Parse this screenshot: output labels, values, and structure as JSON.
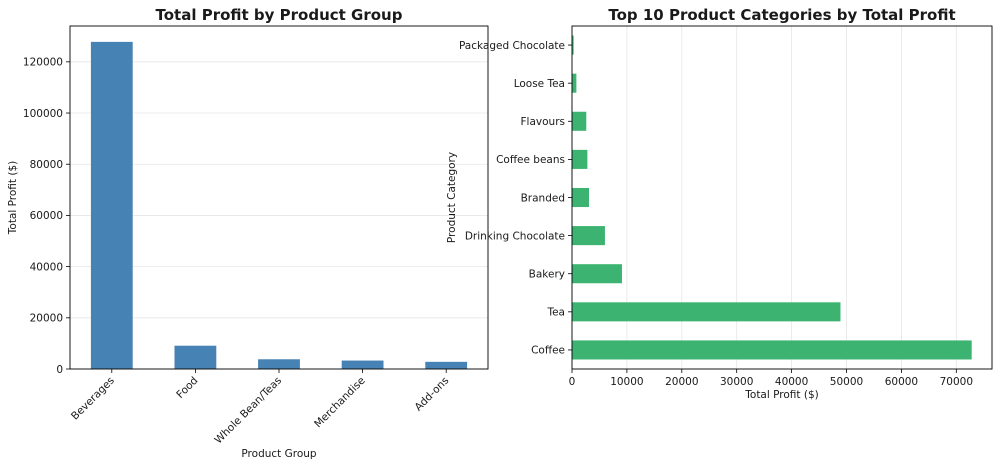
{
  "chart_data": [
    {
      "type": "bar",
      "title": "Total Profit by Product Group",
      "xlabel": "Product Group",
      "ylabel": "Total Profit ($)",
      "categories": [
        "Beverages",
        "Food",
        "Whole Bean/Teas",
        "Merchandise",
        "Add-ons"
      ],
      "values": [
        127800,
        9100,
        3800,
        3300,
        2800
      ],
      "ylim": [
        0,
        134000
      ],
      "yticks": [
        0,
        20000,
        40000,
        60000,
        80000,
        100000,
        120000
      ],
      "ytick_labels": [
        "0",
        "20000",
        "40000",
        "60000",
        "80000",
        "100000",
        "120000"
      ],
      "grid": "y",
      "color": "#4682b4"
    },
    {
      "type": "bar",
      "orientation": "horizontal",
      "title": "Top 10 Product Categories by Total Profit",
      "xlabel": "Total Profit ($)",
      "ylabel": "Product Category",
      "categories": [
        "Coffee",
        "Tea",
        "Bakery",
        "Drinking Chocolate",
        "Branded",
        "Coffee beans",
        "Flavours",
        "Loose Tea",
        "Packaged Chocolate"
      ],
      "values": [
        72800,
        48900,
        9100,
        6000,
        3100,
        2800,
        2600,
        800,
        300
      ],
      "xlim": [
        0,
        76500
      ],
      "xticks": [
        0,
        10000,
        20000,
        30000,
        40000,
        50000,
        60000,
        70000
      ],
      "xtick_labels": [
        "0",
        "10000",
        "20000",
        "30000",
        "40000",
        "50000",
        "60000",
        "70000"
      ],
      "grid": "x",
      "color": "#3cb371"
    }
  ]
}
